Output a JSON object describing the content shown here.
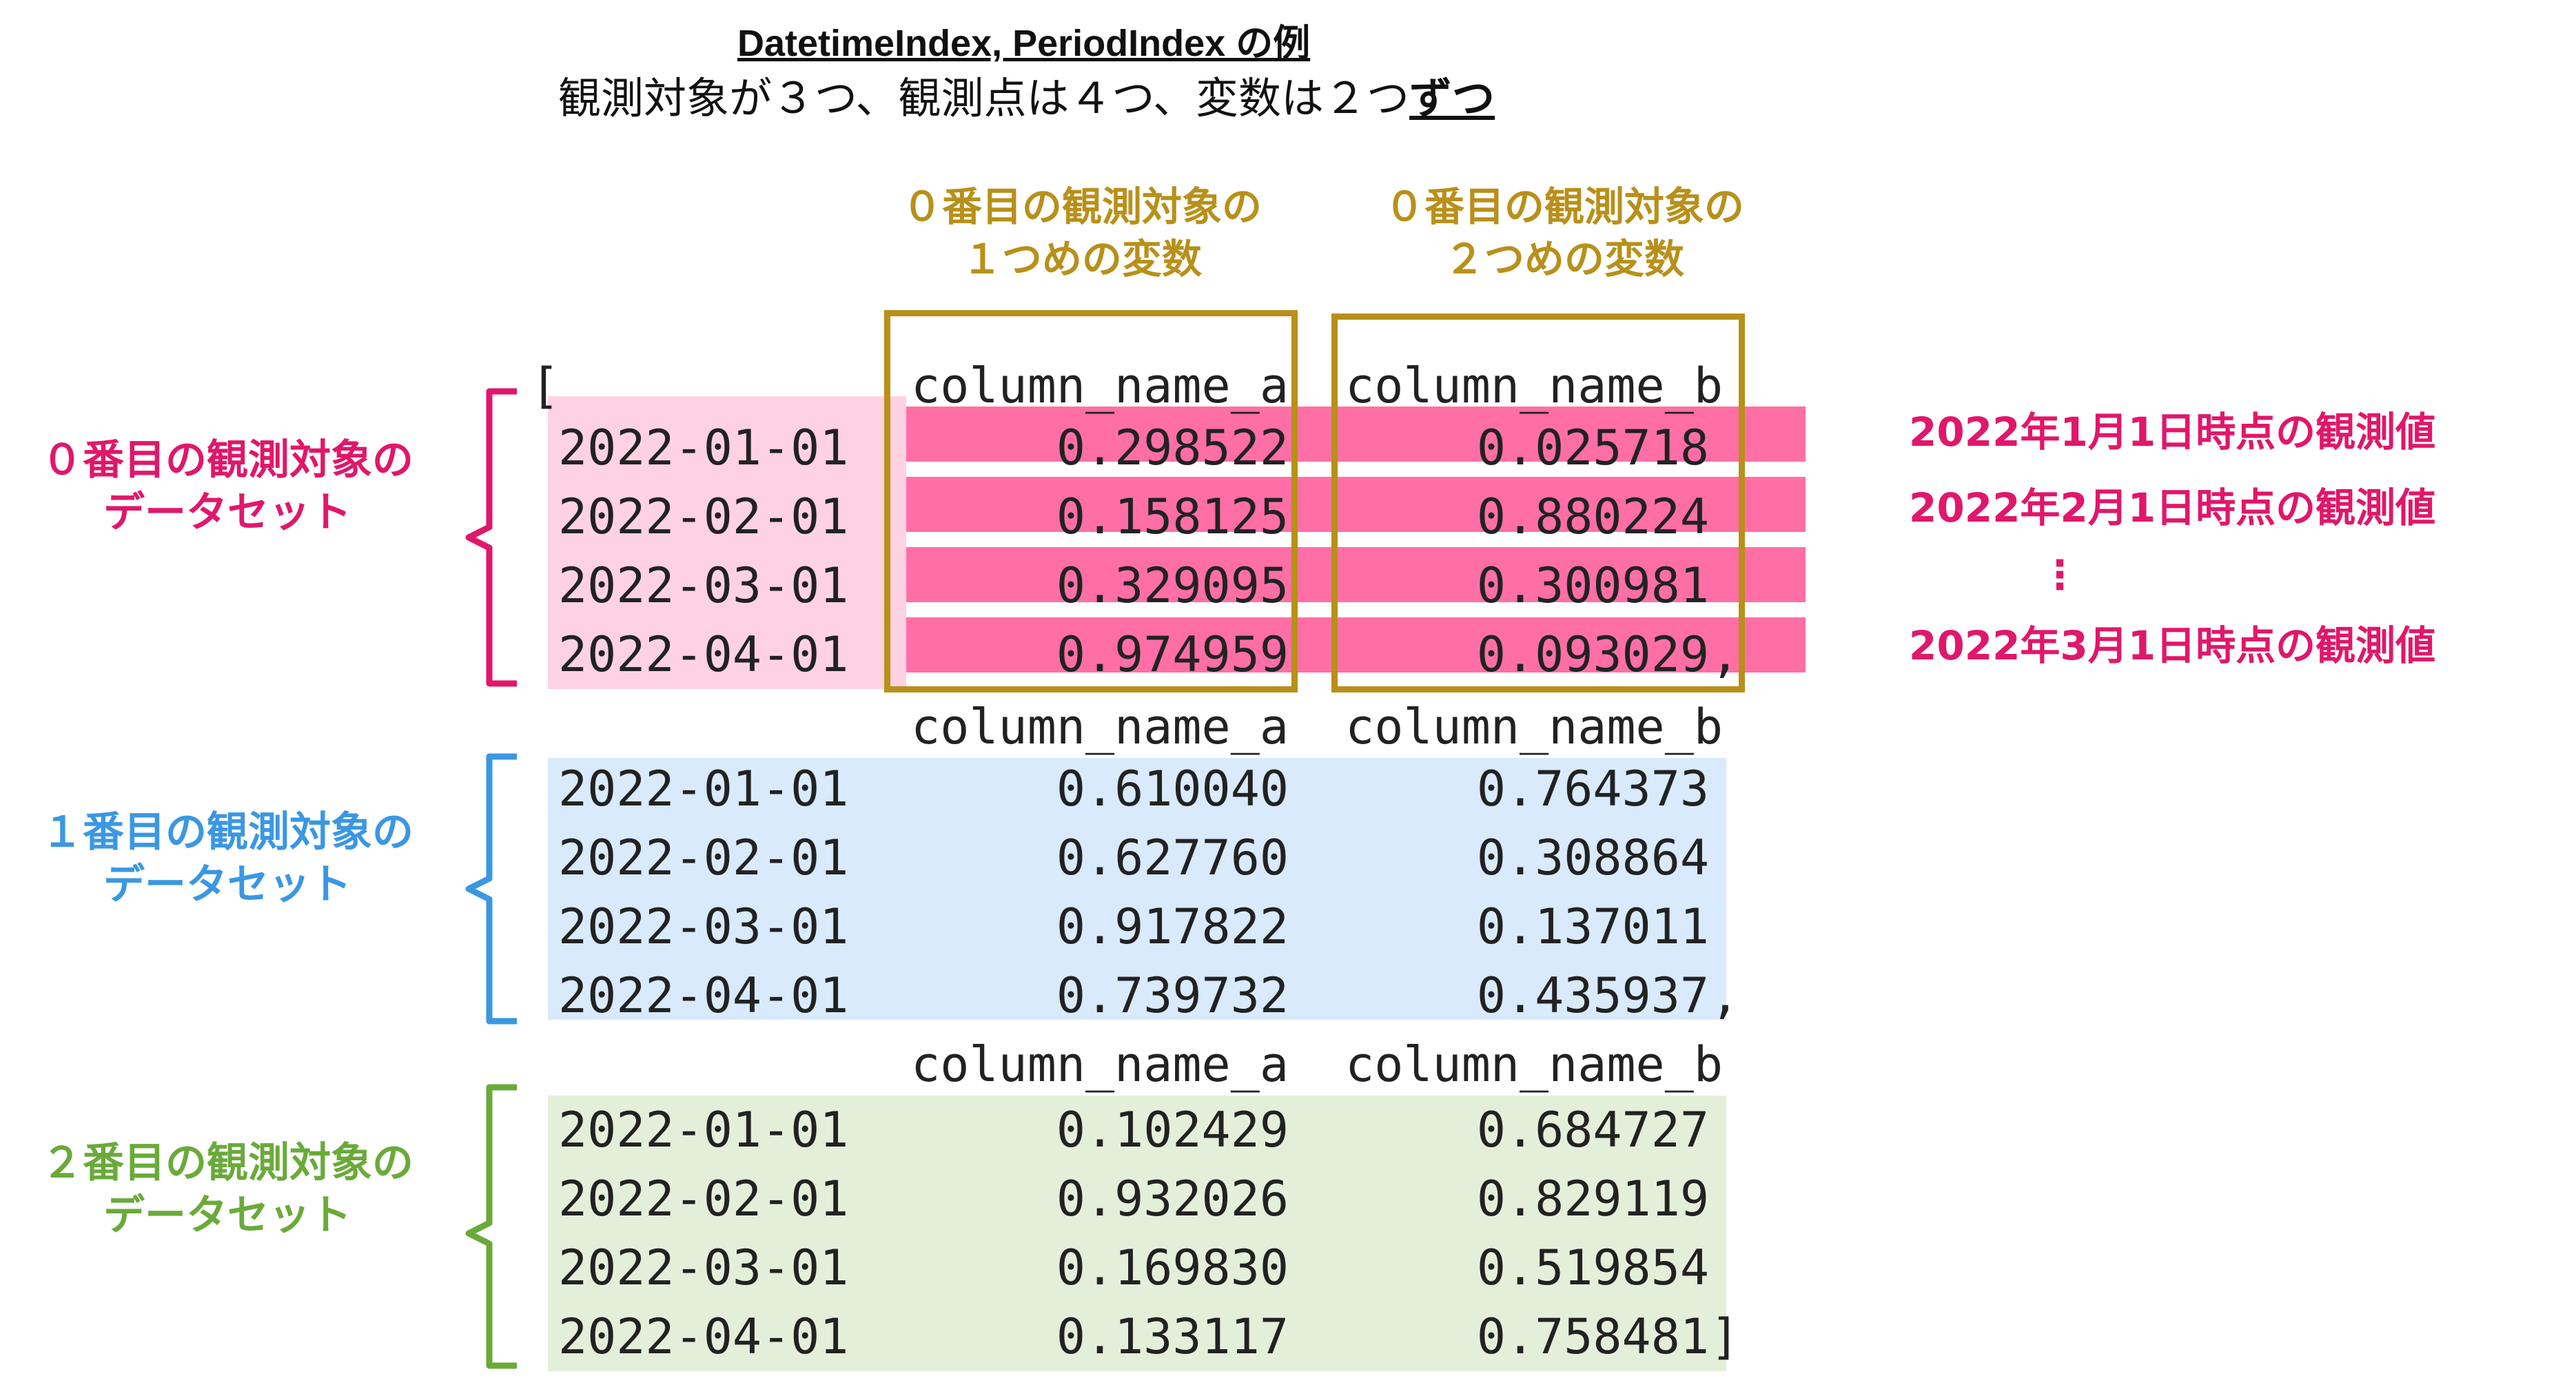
{
  "title": {
    "line1": "DatetimeIndex, PeriodIndex の例",
    "line2_prefix": "観測対象が３つ、観測点は４つ、変数は２つ",
    "line2_emph": "ずつ"
  },
  "column_annotations": [
    {
      "line1": "０番目の観測対象の",
      "line2": "１つめの変数"
    },
    {
      "line1": "０番目の観測対象の",
      "line2": "２つめの変数"
    }
  ],
  "open_bracket": "[",
  "close_bracket": "]",
  "comma": ",",
  "datasets": [
    {
      "label_line1": "０番目の観測対象の",
      "label_line2": "データセット",
      "color": "#e0176a",
      "band": "#ffd2e3",
      "header": [
        "column_name_a",
        "column_name_b"
      ],
      "rows": [
        [
          "2022-01-01",
          "0.298522",
          "0.025718"
        ],
        [
          "2022-02-01",
          "0.158125",
          "0.880224"
        ],
        [
          "2022-03-01",
          "0.329095",
          "0.300981"
        ],
        [
          "2022-04-01",
          "0.974959",
          "0.093029"
        ]
      ]
    },
    {
      "label_line1": "１番目の観測対象の",
      "label_line2": "データセット",
      "color": "#3b97e3",
      "band": "#d8eafc",
      "header": [
        "column_name_a",
        "column_name_b"
      ],
      "rows": [
        [
          "2022-01-01",
          "0.610040",
          "0.764373"
        ],
        [
          "2022-02-01",
          "0.627760",
          "0.308864"
        ],
        [
          "2022-03-01",
          "0.917822",
          "0.137011"
        ],
        [
          "2022-04-01",
          "0.739732",
          "0.435937"
        ]
      ]
    },
    {
      "label_line1": "２番目の観測対象の",
      "label_line2": "データセット",
      "color": "#6aaa3a",
      "band": "#e4efd9",
      "header": [
        "column_name_a",
        "column_name_b"
      ],
      "rows": [
        [
          "2022-01-01",
          "0.102429",
          "0.684727"
        ],
        [
          "2022-02-01",
          "0.932026",
          "0.829119"
        ],
        [
          "2022-03-01",
          "0.169830",
          "0.519854"
        ],
        [
          "2022-04-01",
          "0.133117",
          "0.758481"
        ]
      ]
    }
  ],
  "observation_labels": [
    "2022年1月1日時点の観測値",
    "2022年2月1日時点の観測値",
    "⋮",
    "2022年3月1日時点の観測値"
  ],
  "colors": {
    "gold": "#b8901a",
    "row_highlight": "#ff6fa6",
    "observation_text": "#e0176a"
  }
}
